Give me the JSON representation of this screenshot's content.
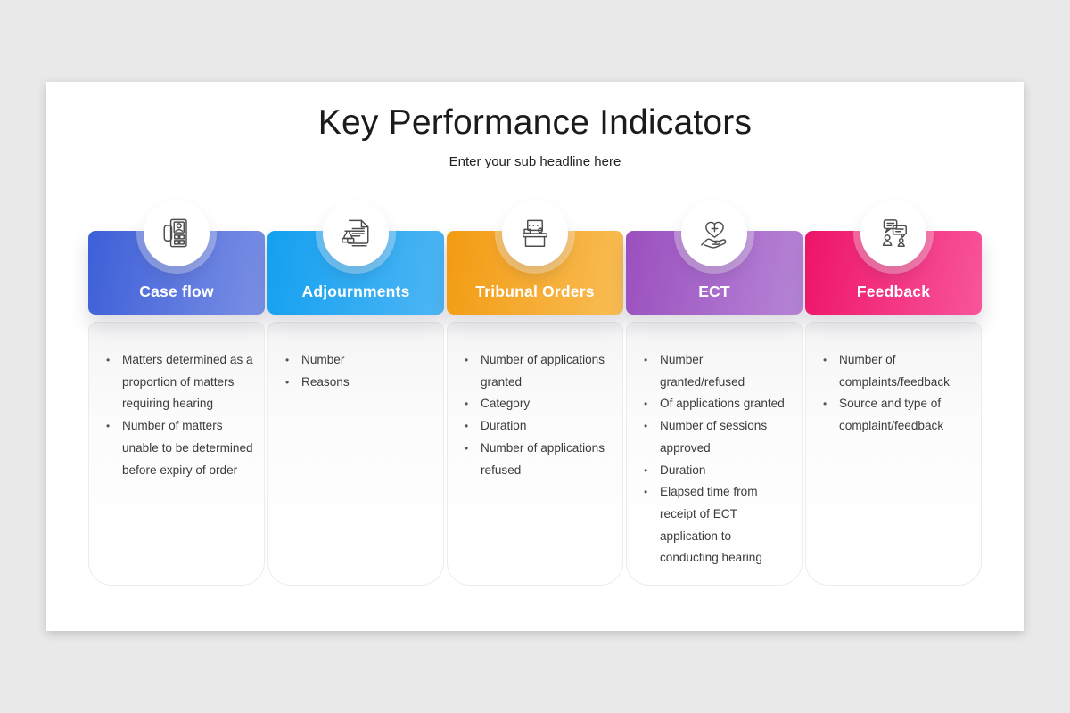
{
  "page": {
    "title": "Key Performance Indicators",
    "subtitle": "Enter your sub headline here"
  },
  "colors": {
    "canvas_background": "#e9e9ea",
    "slide_background": "#ffffff",
    "body_text": "#3b3b3b",
    "header_text": "#ffffff"
  },
  "columns": [
    {
      "label": "Case flow",
      "icon": "case-file-icon",
      "gradient": [
        "#3D5FD8",
        "#7B90E5"
      ],
      "items": [
        "Matters determined as a proportion of matters requiring hearing",
        "Number of matters unable to be determined before expiry of order"
      ]
    },
    {
      "label": "Adjournments",
      "icon": "gavel-document-icon",
      "gradient": [
        "#14A0F0",
        "#4DB6F4"
      ],
      "items": [
        "Number",
        "Reasons"
      ]
    },
    {
      "label": "Tribunal Orders",
      "icon": "tribunal-bench-icon",
      "gradient": [
        "#F29B12",
        "#F9BD55"
      ],
      "items": [
        "Number of applications granted",
        "Category",
        "Duration",
        "Number of applications refused"
      ]
    },
    {
      "label": "ECT",
      "icon": "hand-heart-icon",
      "gradient": [
        "#9B4FBE",
        "#B685D7"
      ],
      "items": [
        "Number granted/refused",
        "Of applications granted",
        "Number of sessions approved",
        "Duration",
        "Elapsed time from receipt of ECT application to conducting hearing"
      ]
    },
    {
      "label": "Feedback",
      "icon": "feedback-chat-icon",
      "gradient": [
        "#EE1468",
        "#F8559B"
      ],
      "items": [
        "Number of complaints/feedback",
        "Source and type of complaint/feedback"
      ]
    }
  ]
}
